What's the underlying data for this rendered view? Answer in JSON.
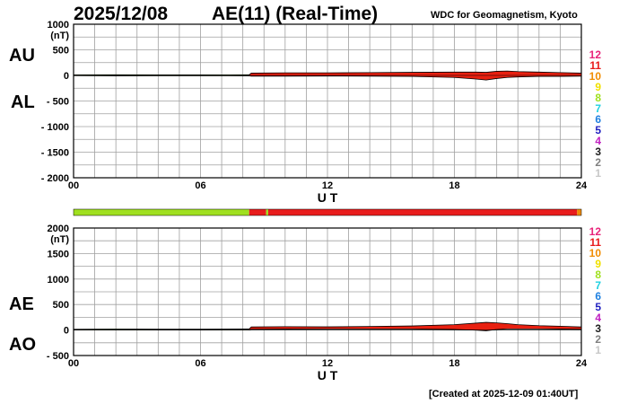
{
  "header": {
    "date": "2025/12/08",
    "title": "AE(11) (Real-Time)",
    "source": "WDC for Geomagnetism, Kyoto",
    "created": "[Created at 2025-12-09 01:40UT]"
  },
  "legend": {
    "items": [
      {
        "label": "12",
        "color": "#e8247a"
      },
      {
        "label": "11",
        "color": "#e81c1c"
      },
      {
        "label": "10",
        "color": "#f08c00"
      },
      {
        "label": "9",
        "color": "#f0e000"
      },
      {
        "label": "8",
        "color": "#a0e020"
      },
      {
        "label": "7",
        "color": "#20d0e0"
      },
      {
        "label": "6",
        "color": "#2080e0"
      },
      {
        "label": "5",
        "color": "#2020c0"
      },
      {
        "label": "4",
        "color": "#c020c0"
      },
      {
        "label": "3",
        "color": "#202020"
      },
      {
        "label": "2",
        "color": "#808080"
      },
      {
        "label": "1",
        "color": "#c8c8c8"
      }
    ]
  },
  "chart_data": [
    {
      "type": "area",
      "panel": "top",
      "series_labels": [
        "AU",
        "AL"
      ],
      "unit": "(nT)",
      "xlabel": "U T",
      "xlim": [
        0,
        24
      ],
      "xticks": [
        "00",
        "06",
        "12",
        "18",
        "24"
      ],
      "ylim": [
        -2000,
        1000
      ],
      "yticks": [
        1000,
        500,
        0,
        -500,
        -1000,
        -1500,
        -2000
      ],
      "ytick_labels": [
        "1000",
        "500",
        "0",
        "- 500",
        "- 1000",
        "- 1500",
        "- 2000"
      ],
      "colors": {
        "early": "#60a020",
        "late": "#e82010",
        "outline": "#000000"
      },
      "x": [
        0,
        2,
        4,
        6,
        8.3,
        8.4,
        10,
        12,
        14,
        16,
        18,
        19,
        19.5,
        20,
        20.5,
        21,
        22,
        23,
        24
      ],
      "au": [
        10,
        12,
        10,
        10,
        12,
        45,
        50,
        50,
        55,
        60,
        65,
        65,
        60,
        80,
        85,
        75,
        65,
        55,
        45
      ],
      "al": [
        -5,
        -8,
        -6,
        -6,
        -8,
        -15,
        -15,
        -12,
        -15,
        -20,
        -40,
        -70,
        -90,
        -60,
        -40,
        -30,
        -20,
        -20,
        -15
      ]
    },
    {
      "type": "bar",
      "panel": "station-count",
      "segments": [
        {
          "from": 0,
          "to": 8.3,
          "color": "#a0e020"
        },
        {
          "from": 8.3,
          "to": 9.1,
          "color": "#e81c1c"
        },
        {
          "from": 9.1,
          "to": 9.2,
          "color": "#a0e020"
        },
        {
          "from": 9.2,
          "to": 23.8,
          "color": "#e81c1c"
        },
        {
          "from": 23.8,
          "to": 24,
          "color": "#f08c00"
        }
      ]
    },
    {
      "type": "area",
      "panel": "bottom",
      "series_labels": [
        "AE",
        "AO"
      ],
      "unit": "(nT)",
      "xlabel": "U T",
      "xlim": [
        0,
        24
      ],
      "xticks": [
        "00",
        "06",
        "12",
        "18",
        "24"
      ],
      "ylim": [
        -500,
        2000
      ],
      "yticks": [
        2000,
        1500,
        1000,
        500,
        0,
        -500
      ],
      "ytick_labels": [
        "2000",
        "1500",
        "1000",
        "500",
        "0",
        "- 500"
      ],
      "colors": {
        "early": "#60a020",
        "late": "#e82010",
        "outline": "#000000"
      },
      "x": [
        0,
        2,
        4,
        6,
        8.3,
        8.4,
        10,
        12,
        14,
        16,
        18,
        19,
        19.5,
        20,
        20.5,
        21,
        22,
        23,
        24
      ],
      "ae": [
        15,
        20,
        16,
        16,
        20,
        60,
        65,
        62,
        70,
        80,
        105,
        135,
        150,
        140,
        125,
        105,
        85,
        75,
        60
      ],
      "ao": [
        3,
        2,
        2,
        2,
        2,
        15,
        18,
        19,
        20,
        20,
        12,
        -2,
        -15,
        10,
        22,
        22,
        22,
        18,
        15
      ]
    }
  ]
}
